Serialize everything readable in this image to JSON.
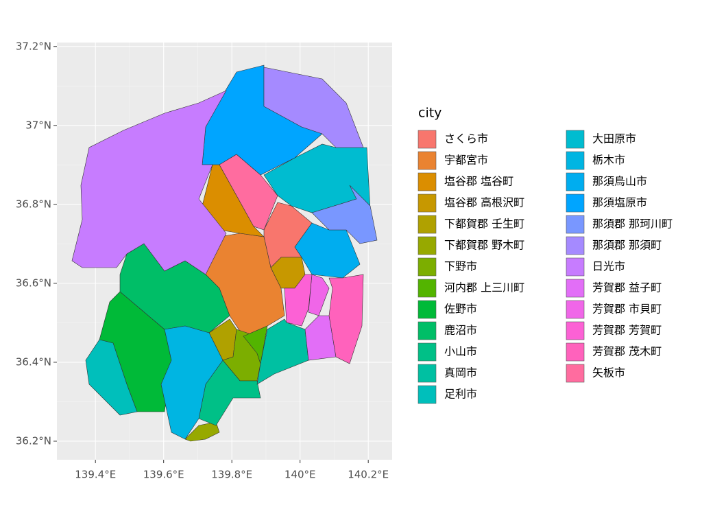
{
  "map": {
    "legend_title": "city",
    "xlim": [
      139.287,
      140.27
    ],
    "ylim": [
      36.153,
      37.21
    ],
    "xticks": [
      {
        "value": 139.4,
        "label": "139.4°E"
      },
      {
        "value": 139.6,
        "label": "139.6°E"
      },
      {
        "value": 139.8,
        "label": "139.8°E"
      },
      {
        "value": 140.0,
        "label": "140°E"
      },
      {
        "value": 140.2,
        "label": "140.2°E"
      }
    ],
    "yticks": [
      {
        "value": 36.2,
        "label": "36.2°N"
      },
      {
        "value": 36.4,
        "label": "36.4°N"
      },
      {
        "value": 36.6,
        "label": "36.6°N"
      },
      {
        "value": 36.8,
        "label": "36.8°N"
      },
      {
        "value": 37.0,
        "label": "37°N"
      },
      {
        "value": 37.2,
        "label": "37.2°N"
      }
    ],
    "regions": [
      {
        "name": "さくら市",
        "color": "#F8766D"
      },
      {
        "name": "宇都宮市",
        "color": "#EA8331"
      },
      {
        "name": "塩谷郡 塩谷町",
        "color": "#DB8E00"
      },
      {
        "name": "塩谷郡 高根沢町",
        "color": "#C79800"
      },
      {
        "name": "下都賀郡 壬生町",
        "color": "#B0A100"
      },
      {
        "name": "下都賀郡 野木町",
        "color": "#97A900"
      },
      {
        "name": "下野市",
        "color": "#7CAE00"
      },
      {
        "name": "河内郡 上三川町",
        "color": "#53B400"
      },
      {
        "name": "佐野市",
        "color": "#00BA38"
      },
      {
        "name": "鹿沼市",
        "color": "#00BE67"
      },
      {
        "name": "小山市",
        "color": "#00C087"
      },
      {
        "name": "真岡市",
        "color": "#00C0A2"
      },
      {
        "name": "足利市",
        "color": "#00BFBB"
      },
      {
        "name": "大田原市",
        "color": "#00BCD0"
      },
      {
        "name": "栃木市",
        "color": "#00B5E2"
      },
      {
        "name": "那須烏山市",
        "color": "#00ADEF"
      },
      {
        "name": "那須塩原市",
        "color": "#00A5FF"
      },
      {
        "name": "那須郡 那珂川町",
        "color": "#7997FF"
      },
      {
        "name": "那須郡 那須町",
        "color": "#A58AFF"
      },
      {
        "name": "日光市",
        "color": "#C77CFF"
      },
      {
        "name": "芳賀郡 益子町",
        "color": "#E26EF7"
      },
      {
        "name": "芳賀郡 市貝町",
        "color": "#F066E8"
      },
      {
        "name": "芳賀郡 芳賀町",
        "color": "#FC61D5"
      },
      {
        "name": "芳賀郡 茂木町",
        "color": "#FF62BC"
      },
      {
        "name": "矢板市",
        "color": "#FF6C9F"
      }
    ]
  }
}
